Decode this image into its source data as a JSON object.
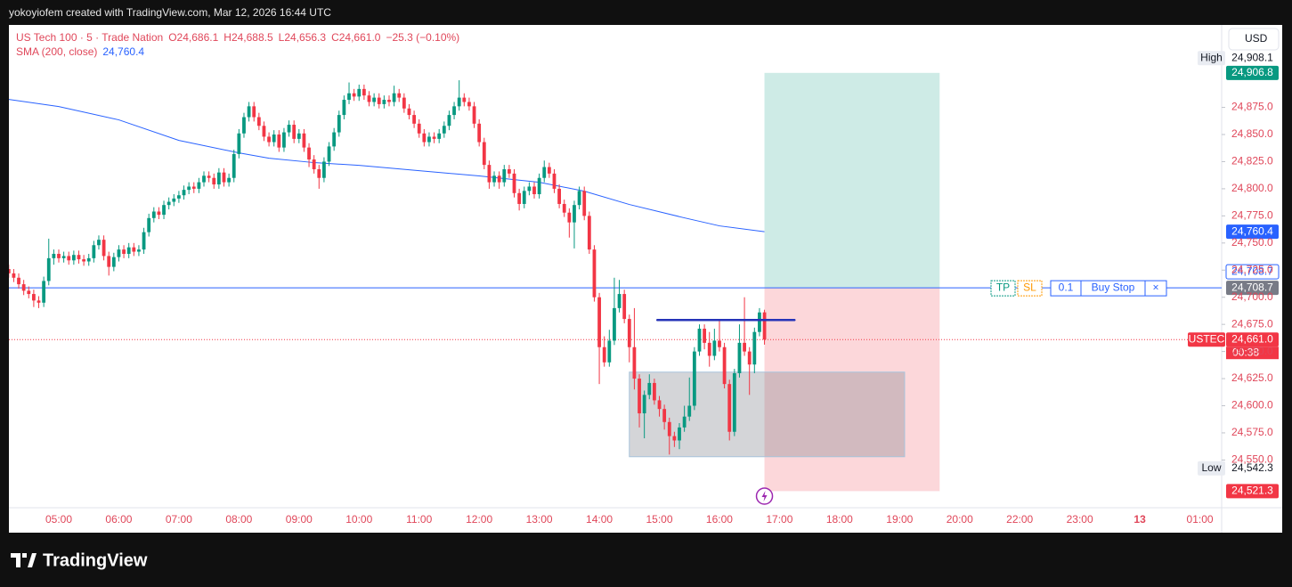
{
  "header": {
    "credit": "yokoyiofem created with TradingView.com, Mar 12, 2026 16:44 UTC",
    "logo": "TradingView"
  },
  "chart_data": {
    "type": "candlestick",
    "title": "US Tech 100 · 5 · Trade Nation",
    "ohlc_legend": [
      {
        "key": "O",
        "value": 24686.1,
        "label": "24,686.1"
      },
      {
        "key": "H",
        "value": 24688.5,
        "label": "24,688.5"
      },
      {
        "key": "L",
        "value": 24656.3,
        "label": "24,656.3"
      },
      {
        "key": "C",
        "value": 24661.0,
        "label": "24,661.0"
      }
    ],
    "change": "−25.3 (−0.10%)",
    "currency": "USD",
    "up_color": "#089981",
    "down_color": "#f23645",
    "ylim": [
      24506,
      24951
    ],
    "yticks": [
      {
        "value": 24550,
        "label": "24,550.0"
      },
      {
        "value": 24575,
        "label": "24,575.0"
      },
      {
        "value": 24600,
        "label": "24,600.0"
      },
      {
        "value": 24625,
        "label": "24,625.0"
      },
      {
        "value": 24650,
        "label": "24,650.0"
      },
      {
        "value": 24675,
        "label": "24,675.0"
      },
      {
        "value": 24700,
        "label": "24,700.0"
      },
      {
        "value": 24725,
        "label": "24,725.0"
      },
      {
        "value": 24750,
        "label": "24,750.0"
      },
      {
        "value": 24775,
        "label": "24,775.0"
      },
      {
        "value": 24800,
        "label": "24,800.0"
      },
      {
        "value": 24825,
        "label": "24,825.0"
      },
      {
        "value": 24850,
        "label": "24,850.0"
      },
      {
        "value": 24875,
        "label": "24,875.0"
      }
    ],
    "xticks": [
      "05:00",
      "06:00",
      "07:00",
      "08:00",
      "09:00",
      "10:00",
      "11:00",
      "12:00",
      "13:00",
      "14:00",
      "15:00",
      "16:00",
      "17:00",
      "18:00",
      "19:00",
      "20:00",
      "22:00",
      "23:00",
      "13",
      "01:00"
    ],
    "grid": false,
    "candles": [
      [
        24726,
        24730,
        24718,
        24722
      ],
      [
        24722,
        24726,
        24714,
        24718
      ],
      [
        24718,
        24722,
        24708,
        24712
      ],
      [
        24712,
        24716,
        24702,
        24706
      ],
      [
        24706,
        24710,
        24699,
        24703
      ],
      [
        24703,
        24707,
        24691,
        24697
      ],
      [
        24697,
        24701,
        24690,
        24695
      ],
      [
        24695,
        24719,
        24691,
        24715
      ],
      [
        24715,
        24754,
        24711,
        24736
      ],
      [
        24736,
        24744,
        24730,
        24740
      ],
      [
        24740,
        24744,
        24732,
        24736
      ],
      [
        24736,
        24742,
        24732,
        24738
      ],
      [
        24738,
        24742,
        24730,
        24734
      ],
      [
        24734,
        24743,
        24730,
        24739
      ],
      [
        24739,
        24743,
        24731,
        24735
      ],
      [
        24735,
        24739,
        24729,
        24733
      ],
      [
        24733,
        24740,
        24729,
        24736
      ],
      [
        24736,
        24752,
        24732,
        24748
      ],
      [
        24748,
        24757,
        24744,
        24753
      ],
      [
        24753,
        24757,
        24734,
        24738
      ],
      [
        24738,
        24742,
        24720,
        24728
      ],
      [
        24728,
        24741,
        24724,
        24737
      ],
      [
        24737,
        24748,
        24733,
        24744
      ],
      [
        24744,
        24748,
        24736,
        24740
      ],
      [
        24740,
        24750,
        24736,
        24746
      ],
      [
        24746,
        24750,
        24738,
        24742
      ],
      [
        24742,
        24748,
        24738,
        24744
      ],
      [
        24744,
        24764,
        24740,
        24760
      ],
      [
        24760,
        24777,
        24756,
        24773
      ],
      [
        24773,
        24783,
        24769,
        24779
      ],
      [
        24779,
        24783,
        24772,
        24776
      ],
      [
        24776,
        24789,
        24772,
        24785
      ],
      [
        24785,
        24792,
        24781,
        24788
      ],
      [
        24788,
        24795,
        24784,
        24791
      ],
      [
        24791,
        24798,
        24787,
        24794
      ],
      [
        24794,
        24803,
        24790,
        24799
      ],
      [
        24799,
        24806,
        24795,
        24802
      ],
      [
        24802,
        24806,
        24796,
        24800
      ],
      [
        24800,
        24810,
        24796,
        24806
      ],
      [
        24806,
        24816,
        24802,
        24812
      ],
      [
        24812,
        24816,
        24806,
        24810
      ],
      [
        24810,
        24814,
        24800,
        24804
      ],
      [
        24804,
        24819,
        24800,
        24815
      ],
      [
        24815,
        24819,
        24802,
        24806
      ],
      [
        24806,
        24814,
        24802,
        24810
      ],
      [
        24810,
        24836,
        24806,
        24832
      ],
      [
        24832,
        24855,
        24828,
        24851
      ],
      [
        24851,
        24870,
        24847,
        24866
      ],
      [
        24866,
        24880,
        24862,
        24876
      ],
      [
        24876,
        24880,
        24862,
        24866
      ],
      [
        24866,
        24870,
        24854,
        24858
      ],
      [
        24858,
        24862,
        24844,
        24848
      ],
      [
        24848,
        24852,
        24839,
        24843
      ],
      [
        24843,
        24854,
        24839,
        24850
      ],
      [
        24850,
        24854,
        24834,
        24838
      ],
      [
        24838,
        24856,
        24834,
        24852
      ],
      [
        24852,
        24863,
        24848,
        24859
      ],
      [
        24859,
        24863,
        24842,
        24846
      ],
      [
        24846,
        24855,
        24842,
        24851
      ],
      [
        24851,
        24855,
        24834,
        24838
      ],
      [
        24838,
        24842,
        24820,
        24827
      ],
      [
        24827,
        24831,
        24814,
        24818
      ],
      [
        24818,
        24822,
        24800,
        24810
      ],
      [
        24810,
        24829,
        24806,
        24825
      ],
      [
        24825,
        24843,
        24821,
        24839
      ],
      [
        24839,
        24856,
        24835,
        24852
      ],
      [
        24852,
        24872,
        24848,
        24868
      ],
      [
        24868,
        24886,
        24864,
        24882
      ],
      [
        24882,
        24898,
        24878,
        24888
      ],
      [
        24888,
        24892,
        24881,
        24885
      ],
      [
        24885,
        24896,
        24881,
        24892
      ],
      [
        24892,
        24896,
        24882,
        24886
      ],
      [
        24886,
        24890,
        24876,
        24880
      ],
      [
        24880,
        24888,
        24876,
        24884
      ],
      [
        24884,
        24888,
        24874,
        24878
      ],
      [
        24878,
        24886,
        24874,
        24882
      ],
      [
        24882,
        24886,
        24876,
        24880
      ],
      [
        24880,
        24895,
        24876,
        24888
      ],
      [
        24888,
        24892,
        24880,
        24884
      ],
      [
        24884,
        24888,
        24870,
        24874
      ],
      [
        24874,
        24878,
        24864,
        24868
      ],
      [
        24868,
        24872,
        24856,
        24860
      ],
      [
        24860,
        24864,
        24847,
        24851
      ],
      [
        24851,
        24855,
        24839,
        24843
      ],
      [
        24843,
        24852,
        24839,
        24848
      ],
      [
        24848,
        24852,
        24842,
        24846
      ],
      [
        24846,
        24855,
        24842,
        24851
      ],
      [
        24851,
        24862,
        24847,
        24858
      ],
      [
        24858,
        24872,
        24854,
        24868
      ],
      [
        24868,
        24880,
        24864,
        24876
      ],
      [
        24876,
        24900,
        24872,
        24884
      ],
      [
        24884,
        24888,
        24876,
        24880
      ],
      [
        24880,
        24884,
        24872,
        24876
      ],
      [
        24876,
        24880,
        24856,
        24860
      ],
      [
        24860,
        24864,
        24839,
        24843
      ],
      [
        24843,
        24847,
        24818,
        24822
      ],
      [
        24822,
        24826,
        24800,
        24806
      ],
      [
        24806,
        24816,
        24802,
        24812
      ],
      [
        24812,
        24816,
        24800,
        24806
      ],
      [
        24806,
        24822,
        24802,
        24818
      ],
      [
        24818,
        24822,
        24810,
        24814
      ],
      [
        24814,
        24818,
        24792,
        24796
      ],
      [
        24796,
        24800,
        24780,
        24786
      ],
      [
        24786,
        24802,
        24782,
        24798
      ],
      [
        24798,
        24806,
        24794,
        24802
      ],
      [
        24802,
        24806,
        24791,
        24795
      ],
      [
        24795,
        24814,
        24791,
        24810
      ],
      [
        24810,
        24826,
        24806,
        24820
      ],
      [
        24820,
        24824,
        24810,
        24814
      ],
      [
        24814,
        24818,
        24796,
        24800
      ],
      [
        24800,
        24804,
        24782,
        24786
      ],
      [
        24786,
        24790,
        24774,
        24778
      ],
      [
        24778,
        24782,
        24755,
        24769
      ],
      [
        24769,
        24789,
        24745,
        24785
      ],
      [
        24785,
        24802,
        24781,
        24798
      ],
      [
        24798,
        24802,
        24771,
        24775
      ],
      [
        24775,
        24779,
        24740,
        24744
      ],
      [
        24744,
        24748,
        24696,
        24700
      ],
      [
        24700,
        24704,
        24620,
        24654
      ],
      [
        24654,
        24664,
        24636,
        24640
      ],
      [
        24640,
        24670,
        24636,
        24660
      ],
      [
        24660,
        24718,
        24656,
        24690
      ],
      [
        24690,
        24716,
        24686,
        24703
      ],
      [
        24703,
        24707,
        24676,
        24680
      ],
      [
        24680,
        24684,
        24640,
        24654
      ],
      [
        24654,
        24690,
        24615,
        24625
      ],
      [
        24625,
        24629,
        24580,
        24593
      ],
      [
        24593,
        24614,
        24570,
        24610
      ],
      [
        24610,
        24629,
        24606,
        24621
      ],
      [
        24621,
        24625,
        24601,
        24605
      ],
      [
        24605,
        24609,
        24590,
        24597
      ],
      [
        24597,
        24601,
        24578,
        24585
      ],
      [
        24585,
        24589,
        24555,
        24572
      ],
      [
        24572,
        24576,
        24562,
        24568
      ],
      [
        24568,
        24584,
        24560,
        24580
      ],
      [
        24580,
        24600,
        24576,
        24590
      ],
      [
        24590,
        24626,
        24586,
        24600
      ],
      [
        24600,
        24654,
        24596,
        24650
      ],
      [
        24650,
        24675,
        24646,
        24671
      ],
      [
        24671,
        24675,
        24652,
        24658
      ],
      [
        24658,
        24668,
        24636,
        24646
      ],
      [
        24646,
        24671,
        24642,
        24660
      ],
      [
        24660,
        24678,
        24650,
        24654
      ],
      [
        24654,
        24658,
        24616,
        24620
      ],
      [
        24620,
        24624,
        24568,
        24576
      ],
      [
        24576,
        24634,
        24572,
        24630
      ],
      [
        24630,
        24675,
        24626,
        24658
      ],
      [
        24658,
        24700,
        24646,
        24650
      ],
      [
        24650,
        24654,
        24610,
        24638
      ],
      [
        24638,
        24672,
        24630,
        24668
      ],
      [
        24668,
        24690,
        24664,
        24686
      ],
      [
        24686.1,
        24688.5,
        24656.3,
        24661.0
      ]
    ],
    "sma": {
      "name": "SMA (200, close)",
      "color": "#2962ff",
      "last": {
        "value": 24760.4,
        "label": "24,760.4"
      },
      "x": [
        "04:10",
        "05:00",
        "06:00",
        "07:00",
        "08:00",
        "08:30",
        "09:15",
        "10:00",
        "11:00",
        "12:00",
        "13:00",
        "13:45",
        "14:30",
        "15:25",
        "16:00",
        "16:45"
      ],
      "values": [
        24882.4,
        24875.8,
        24863.5,
        24844.6,
        24833.1,
        24828.2,
        24824.1,
        24821.6,
        24816.7,
        24811.8,
        24806.0,
        24797.8,
        24785.5,
        24773.2,
        24765.8,
        24760.4
      ]
    },
    "position": {
      "x": [
        "16:45",
        "19:40"
      ],
      "target": 24906.8,
      "entry": 24708.7,
      "stop": 24521.3
    },
    "range_box": {
      "x": [
        "14:30",
        "19:05"
      ],
      "top": 24631,
      "bottom": 24553
    },
    "drawn_line": {
      "x": [
        "14:58",
        "17:15"
      ],
      "value": 24679
    },
    "order": {
      "tp": "TP",
      "sl": "SL",
      "qty": "0.1",
      "kind": "Buy Stop",
      "close": "×"
    },
    "price_tags": {
      "high": {
        "name": "High",
        "value": 24908.1,
        "label": "24,908.1"
      },
      "target": {
        "value": 24906.8,
        "label": "24,906.8"
      },
      "order": {
        "value": 24708.7,
        "label": "24,708.7"
      },
      "entry": {
        "value": 24708.7,
        "label": "24,708.7"
      },
      "last": {
        "name": "USTEC",
        "value": 24661.0,
        "label": "24,661.0",
        "countdown": "00:38"
      },
      "low": {
        "name": "Low",
        "value": 24542.3,
        "label": "24,542.3"
      },
      "stop": {
        "value": 24521.3,
        "label": "24,521.3"
      }
    }
  }
}
